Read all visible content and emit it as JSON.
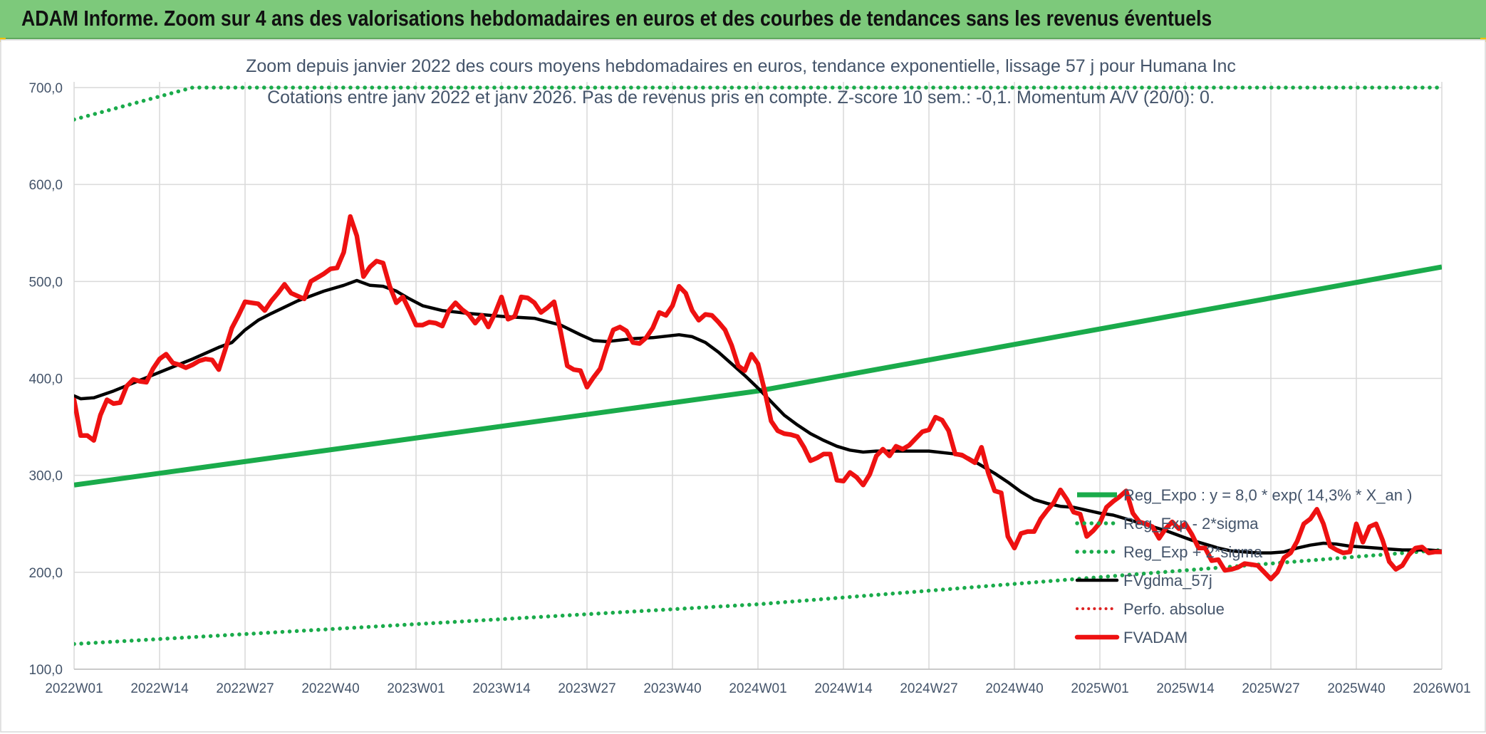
{
  "header": {
    "title": "ADAM Informe. Zoom sur 4 ans des valorisations hebdomadaires en euros et des courbes de tendances sans les revenus éventuels"
  },
  "colors": {
    "header_bg": "#7dc97b",
    "trend_green": "#1aab4b",
    "price_red": "#ee1111",
    "mma_black": "#000000",
    "perf_red": "#dd2222"
  },
  "chart_data": {
    "type": "line",
    "title": "Zoom depuis janvier 2022 des cours moyens hebdomadaires en euros, tendance exponentielle, lissage 57 j pour Humana Inc",
    "subtitle": "Cotations entre janv 2022 et janv 2026. Pas de revenus pris en compte. Z-score 10 sem.: -0,1. Momentum A/V (20/0): 0.",
    "xlabel": "",
    "ylabel": "",
    "ylim": [
      100,
      700
    ],
    "yticks": [
      "100,0",
      "200,0",
      "300,0",
      "400,0",
      "500,0",
      "600,0",
      "700,0"
    ],
    "x_tick_labels": [
      "2022W01",
      "2022W14",
      "2022W27",
      "2022W40",
      "2023W01",
      "2023W14",
      "2023W27",
      "2023W40",
      "2024W01",
      "2024W14",
      "2024W27",
      "2024W40",
      "2025W01",
      "2025W14",
      "2025W27",
      "2025W40",
      "2026W01"
    ],
    "x_tick_weeks": [
      0,
      13,
      26,
      39,
      52,
      65,
      78,
      91,
      104,
      117,
      130,
      143,
      156,
      169,
      182,
      195,
      208
    ],
    "grid": true,
    "legend_position": "bottom-right",
    "series": [
      {
        "name": "Reg_Expo : y = 8,0 * exp( 14,3% *  X_an )",
        "style": "solid-green",
        "points": [
          [
            0,
            290
          ],
          [
            104,
            387
          ],
          [
            208,
            515
          ]
        ]
      },
      {
        "name": "Reg_Exp - 2*sigma",
        "style": "dotted-green",
        "points": [
          [
            0,
            126
          ],
          [
            104,
            167
          ],
          [
            208,
            223
          ]
        ]
      },
      {
        "name": "Reg_Exp + 2*sigma",
        "style": "dotted-green",
        "points": [
          [
            0,
            667
          ],
          [
            18,
            700
          ],
          [
            177,
            700
          ],
          [
            208,
            700
          ]
        ]
      },
      {
        "name": "FVgdma_57j",
        "style": "solid-black",
        "points": [
          [
            0,
            382
          ],
          [
            1,
            379
          ],
          [
            3,
            380
          ],
          [
            6,
            387
          ],
          [
            10,
            398
          ],
          [
            14,
            409
          ],
          [
            18,
            420
          ],
          [
            22,
            432
          ],
          [
            24,
            437
          ],
          [
            26,
            450
          ],
          [
            28,
            460
          ],
          [
            30,
            467
          ],
          [
            34,
            480
          ],
          [
            38,
            490
          ],
          [
            41,
            496
          ],
          [
            43,
            501
          ],
          [
            45,
            496
          ],
          [
            47,
            495
          ],
          [
            49,
            490
          ],
          [
            51,
            482
          ],
          [
            53,
            475
          ],
          [
            56,
            470
          ],
          [
            60,
            467
          ],
          [
            65,
            464
          ],
          [
            70,
            462
          ],
          [
            74,
            455
          ],
          [
            77,
            445
          ],
          [
            79,
            439
          ],
          [
            81,
            438
          ],
          [
            85,
            441
          ],
          [
            88,
            442
          ],
          [
            92,
            445
          ],
          [
            94,
            443
          ],
          [
            96,
            437
          ],
          [
            98,
            427
          ],
          [
            100,
            415
          ],
          [
            102,
            403
          ],
          [
            104,
            390
          ],
          [
            106,
            376
          ],
          [
            108,
            362
          ],
          [
            110,
            352
          ],
          [
            112,
            343
          ],
          [
            114,
            336
          ],
          [
            116,
            330
          ],
          [
            118,
            326
          ],
          [
            120,
            324
          ],
          [
            122,
            325
          ],
          [
            125,
            325
          ],
          [
            130,
            325
          ],
          [
            134,
            322
          ],
          [
            136,
            318
          ],
          [
            138,
            310
          ],
          [
            140,
            302
          ],
          [
            142,
            293
          ],
          [
            144,
            283
          ],
          [
            146,
            275
          ],
          [
            148,
            271
          ],
          [
            150,
            268
          ],
          [
            152,
            267
          ],
          [
            154,
            264
          ],
          [
            156,
            261
          ],
          [
            158,
            259
          ],
          [
            160,
            255
          ],
          [
            162,
            251
          ],
          [
            164,
            247
          ],
          [
            166,
            243
          ],
          [
            168,
            238
          ],
          [
            170,
            233
          ],
          [
            172,
            229
          ],
          [
            174,
            225
          ],
          [
            176,
            222
          ],
          [
            178,
            221
          ],
          [
            180,
            220
          ],
          [
            182,
            220
          ],
          [
            184,
            221
          ],
          [
            186,
            225
          ],
          [
            188,
            228
          ],
          [
            190,
            230
          ],
          [
            192,
            229
          ],
          [
            194,
            227
          ],
          [
            196,
            226
          ],
          [
            198,
            225
          ],
          [
            200,
            224
          ],
          [
            202,
            223
          ],
          [
            204,
            223
          ],
          [
            206,
            223
          ],
          [
            208,
            222
          ]
        ]
      },
      {
        "name": "Perfo. absolue",
        "style": "dotted-red",
        "points": []
      },
      {
        "name": "FVADAM",
        "style": "solid-red-thick",
        "points": [
          [
            0,
            378
          ],
          [
            1,
            341
          ],
          [
            2,
            341
          ],
          [
            3,
            336
          ],
          [
            4,
            362
          ],
          [
            5,
            378
          ],
          [
            6,
            374
          ],
          [
            7,
            375
          ],
          [
            8,
            392
          ],
          [
            9,
            399
          ],
          [
            10,
            397
          ],
          [
            11,
            396
          ],
          [
            12,
            410
          ],
          [
            13,
            420
          ],
          [
            14,
            425
          ],
          [
            15,
            416
          ],
          [
            16,
            414
          ],
          [
            17,
            411
          ],
          [
            18,
            414
          ],
          [
            19,
            418
          ],
          [
            20,
            420
          ],
          [
            21,
            419
          ],
          [
            22,
            409
          ],
          [
            23,
            430
          ],
          [
            24,
            452
          ],
          [
            25,
            465
          ],
          [
            26,
            479
          ],
          [
            27,
            478
          ],
          [
            28,
            477
          ],
          [
            29,
            470
          ],
          [
            30,
            480
          ],
          [
            31,
            488
          ],
          [
            32,
            497
          ],
          [
            33,
            488
          ],
          [
            34,
            485
          ],
          [
            35,
            482
          ],
          [
            36,
            500
          ],
          [
            37,
            504
          ],
          [
            38,
            508
          ],
          [
            39,
            513
          ],
          [
            40,
            514
          ],
          [
            41,
            530
          ],
          [
            42,
            567
          ],
          [
            43,
            547
          ],
          [
            44,
            505
          ],
          [
            45,
            515
          ],
          [
            46,
            521
          ],
          [
            47,
            519
          ],
          [
            48,
            495
          ],
          [
            49,
            478
          ],
          [
            50,
            484
          ],
          [
            51,
            470
          ],
          [
            52,
            455
          ],
          [
            53,
            455
          ],
          [
            54,
            458
          ],
          [
            55,
            457
          ],
          [
            56,
            454
          ],
          [
            57,
            470
          ],
          [
            58,
            478
          ],
          [
            59,
            471
          ],
          [
            60,
            466
          ],
          [
            61,
            457
          ],
          [
            62,
            465
          ],
          [
            63,
            453
          ],
          [
            64,
            467
          ],
          [
            65,
            484
          ],
          [
            66,
            461
          ],
          [
            67,
            464
          ],
          [
            68,
            484
          ],
          [
            69,
            483
          ],
          [
            70,
            478
          ],
          [
            71,
            468
          ],
          [
            72,
            473
          ],
          [
            73,
            479
          ],
          [
            74,
            448
          ],
          [
            75,
            413
          ],
          [
            76,
            409
          ],
          [
            77,
            408
          ],
          [
            78,
            391
          ],
          [
            79,
            401
          ],
          [
            80,
            410
          ],
          [
            81,
            432
          ],
          [
            82,
            450
          ],
          [
            83,
            453
          ],
          [
            84,
            449
          ],
          [
            85,
            437
          ],
          [
            86,
            436
          ],
          [
            87,
            442
          ],
          [
            88,
            452
          ],
          [
            89,
            468
          ],
          [
            90,
            465
          ],
          [
            91,
            475
          ],
          [
            92,
            495
          ],
          [
            93,
            488
          ],
          [
            94,
            470
          ],
          [
            95,
            460
          ],
          [
            96,
            466
          ],
          [
            97,
            465
          ],
          [
            98,
            458
          ],
          [
            99,
            450
          ],
          [
            100,
            434
          ],
          [
            101,
            413
          ],
          [
            102,
            408
          ],
          [
            103,
            425
          ],
          [
            104,
            415
          ],
          [
            105,
            388
          ],
          [
            106,
            356
          ],
          [
            107,
            346
          ],
          [
            108,
            343
          ],
          [
            109,
            342
          ],
          [
            110,
            340
          ],
          [
            111,
            329
          ],
          [
            112,
            315
          ],
          [
            113,
            318
          ],
          [
            114,
            322
          ],
          [
            115,
            322
          ],
          [
            116,
            295
          ],
          [
            117,
            294
          ],
          [
            118,
            303
          ],
          [
            119,
            298
          ],
          [
            120,
            290
          ],
          [
            121,
            301
          ],
          [
            122,
            320
          ],
          [
            123,
            327
          ],
          [
            124,
            320
          ],
          [
            125,
            330
          ],
          [
            126,
            327
          ],
          [
            127,
            331
          ],
          [
            128,
            338
          ],
          [
            129,
            345
          ],
          [
            130,
            347
          ],
          [
            131,
            360
          ],
          [
            132,
            357
          ],
          [
            133,
            346
          ],
          [
            134,
            322
          ],
          [
            135,
            321
          ],
          [
            136,
            317
          ],
          [
            137,
            313
          ],
          [
            138,
            329
          ],
          [
            139,
            303
          ],
          [
            140,
            284
          ],
          [
            141,
            282
          ],
          [
            142,
            237
          ],
          [
            143,
            225
          ],
          [
            144,
            240
          ],
          [
            145,
            242
          ],
          [
            146,
            242
          ],
          [
            147,
            255
          ],
          [
            148,
            264
          ],
          [
            149,
            272
          ],
          [
            150,
            285
          ],
          [
            151,
            275
          ],
          [
            152,
            262
          ],
          [
            153,
            260
          ],
          [
            154,
            237
          ],
          [
            155,
            243
          ],
          [
            156,
            251
          ],
          [
            157,
            267
          ],
          [
            158,
            273
          ],
          [
            159,
            278
          ],
          [
            160,
            284
          ],
          [
            161,
            261
          ],
          [
            162,
            252
          ],
          [
            163,
            250
          ],
          [
            164,
            247
          ],
          [
            165,
            235
          ],
          [
            166,
            245
          ],
          [
            167,
            252
          ],
          [
            168,
            245
          ],
          [
            169,
            250
          ],
          [
            170,
            239
          ],
          [
            171,
            225
          ],
          [
            172,
            225
          ],
          [
            173,
            212
          ],
          [
            174,
            213
          ],
          [
            175,
            202
          ],
          [
            176,
            203
          ],
          [
            177,
            205
          ],
          [
            178,
            209
          ],
          [
            179,
            208
          ],
          [
            180,
            207
          ],
          [
            181,
            200
          ],
          [
            182,
            193
          ],
          [
            183,
            200
          ],
          [
            184,
            215
          ],
          [
            185,
            220
          ],
          [
            186,
            232
          ],
          [
            187,
            250
          ],
          [
            188,
            255
          ],
          [
            189,
            265
          ],
          [
            190,
            250
          ],
          [
            191,
            227
          ],
          [
            192,
            223
          ],
          [
            193,
            220
          ],
          [
            194,
            221
          ],
          [
            195,
            250
          ],
          [
            196,
            231
          ],
          [
            197,
            247
          ],
          [
            198,
            250
          ],
          [
            199,
            233
          ],
          [
            200,
            211
          ],
          [
            201,
            203
          ],
          [
            202,
            207
          ],
          [
            203,
            218
          ],
          [
            204,
            225
          ],
          [
            205,
            226
          ],
          [
            206,
            220
          ],
          [
            207,
            221
          ],
          [
            208,
            221
          ]
        ]
      }
    ]
  }
}
